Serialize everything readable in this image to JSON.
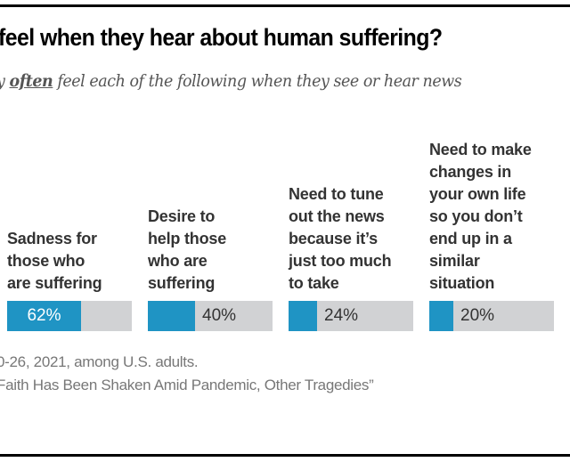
{
  "header": {
    "title": "feel when they hear about human suffering?",
    "subtitle_prefix": "y ",
    "subtitle_emphasis": "often",
    "subtitle_suffix": " feel each of the following when they see or hear news"
  },
  "chart_data": {
    "type": "bar",
    "orientation": "horizontal-small-multiples",
    "title": "feel when they hear about human suffering?",
    "subtitle": "…y often feel each of the following when they see or hear news",
    "categories": [
      "Sadness for those who are suffering",
      "Desire to help those who are suffering",
      "Need to tune out the news because it’s just too much to take",
      "Need to make changes in your own life so you don’t end up in a similar situation"
    ],
    "category_lines": [
      "Sadness for\nthose who\nare suffering",
      "Desire to\nhelp those\nwho are\nsuffering",
      "Need to tune\nout the news\nbecause it’s\njust too much\nto take",
      "Need to make\nchanges in\nyour own life\nso you don’t\nend up in a\nsimilar\nsituation"
    ],
    "values": [
      62,
      40,
      24,
      20
    ],
    "value_labels": [
      "62%",
      "40%",
      "24%",
      "20%"
    ],
    "xlim": [
      0,
      100
    ],
    "unit": "%",
    "colors": {
      "fill": "#1f94c4",
      "track": "#d1d2d4"
    },
    "grid": false,
    "legend": "none"
  },
  "footer": {
    "note_line1": "0-26, 2021, among U.S. adults.",
    "note_line2": "Faith Has Been Shaken Amid Pandemic, Other Tragedies”"
  }
}
